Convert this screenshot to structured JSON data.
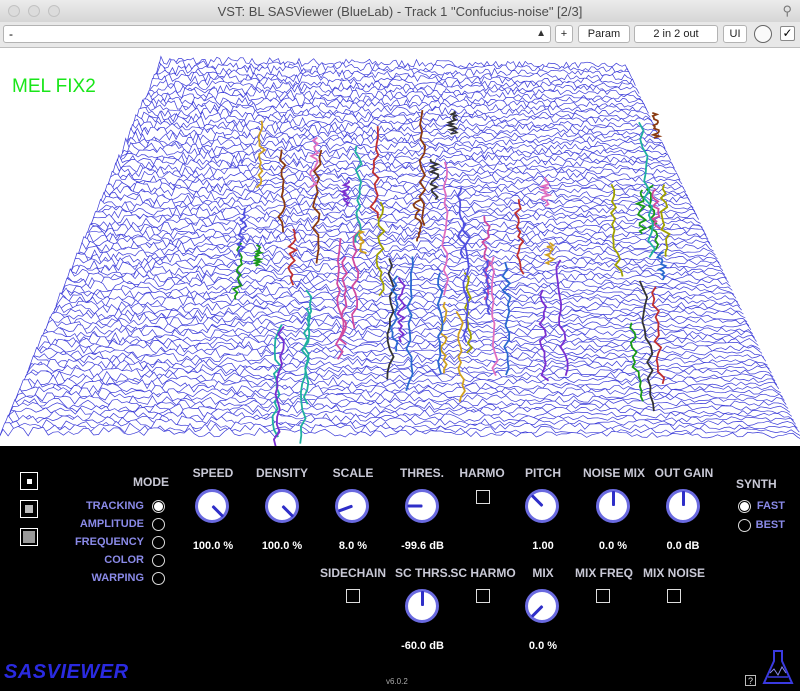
{
  "window": {
    "title": "VST: BL SASViewer (BlueLab) - Track 1 \"Confucius-noise\" [2/3]"
  },
  "host_toolbar": {
    "preset_value": "-",
    "plus_label": "+",
    "param_label": "Param",
    "io_label": "2 in 2 out",
    "ui_label": "UI",
    "check_mark": "✓"
  },
  "visualization": {
    "label": "MEL FIX2",
    "label_color": "#19e619",
    "line_color": "#3a3ad8"
  },
  "mode": {
    "title": "MODE",
    "options": [
      "TRACKING",
      "AMPLITUDE",
      "FREQUENCY",
      "COLOR",
      "WARPING"
    ],
    "selected": "TRACKING"
  },
  "knobs": {
    "speed": {
      "label": "SPEED",
      "value": "100.0 %"
    },
    "density": {
      "label": "DENSITY",
      "value": "100.0 %"
    },
    "scale": {
      "label": "SCALE",
      "value": "8.0 %"
    },
    "thres": {
      "label": "THRES.",
      "value": "-99.6 dB"
    },
    "pitch": {
      "label": "PITCH",
      "value": "1.00"
    },
    "noise_mix": {
      "label": "NOISE MIX",
      "value": "0.0 %"
    },
    "out_gain": {
      "label": "OUT GAIN",
      "value": "0.0 dB"
    },
    "sc_thrs": {
      "label": "SC THRS.",
      "value": "-60.0 dB"
    },
    "mix": {
      "label": "MIX",
      "value": "0.0 %"
    }
  },
  "toggles": {
    "harmo": "HARMO",
    "sidechain": "SIDECHAIN",
    "sc_harmo": "SC HARMO",
    "mix_freq": "MIX FREQ",
    "mix_noise": "MIX NOISE"
  },
  "synth": {
    "title": "SYNTH",
    "options": [
      "FAST",
      "BEST"
    ],
    "selected": "FAST"
  },
  "footer": {
    "logo": "SASVIEWER",
    "version": "v6.0.2",
    "help": "?"
  },
  "colors": {
    "accent": "#6a6ae0",
    "knob_indicator": "#2e2ec8",
    "mode_text": "#8a8ae8"
  }
}
